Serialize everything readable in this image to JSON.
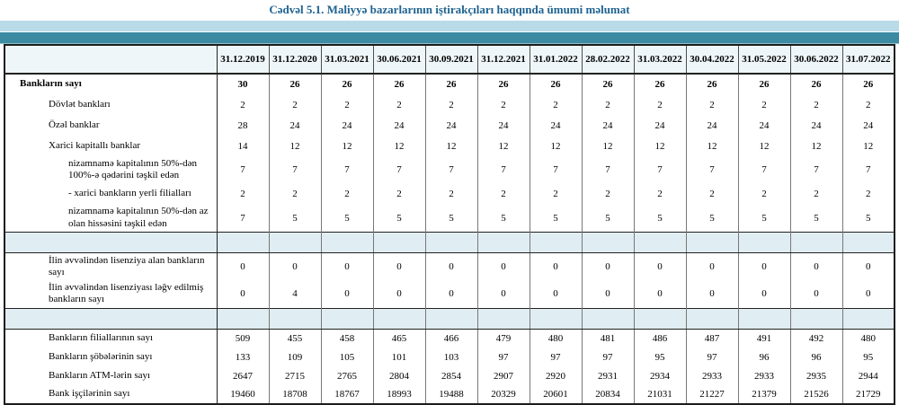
{
  "title": "Cədvəl 5.1. Maliyyə bazarlarının iştirakçıları haqqında ümumi məlumat",
  "colors": {
    "title_text": "#1f6391",
    "band_light": "#b9dbe7",
    "band_teal": "#3c8ba2",
    "header_bg": "#eff6f9",
    "separator_bg": "#e0edf2"
  },
  "table": {
    "date_columns": [
      "31.12.2019",
      "31.12.2020",
      "31.03.2021",
      "30.06.2021",
      "30.09.2021",
      "31.12.2021",
      "31.01.2022",
      "28.02.2022",
      "31.03.2022",
      "30.04.2022",
      "31.05.2022",
      "30.06.2022",
      "31.07.2022"
    ],
    "rows": [
      {
        "label": "Bankların sayı",
        "indent": 0,
        "bold": true,
        "values": [
          "30",
          "26",
          "26",
          "26",
          "26",
          "26",
          "26",
          "26",
          "26",
          "26",
          "26",
          "26",
          "26"
        ]
      },
      {
        "label": "Dövlət bankları",
        "indent": 1,
        "values": [
          "2",
          "2",
          "2",
          "2",
          "2",
          "2",
          "2",
          "2",
          "2",
          "2",
          "2",
          "2",
          "2"
        ]
      },
      {
        "label": "Özəl banklar",
        "indent": 1,
        "values": [
          "28",
          "24",
          "24",
          "24",
          "24",
          "24",
          "24",
          "24",
          "24",
          "24",
          "24",
          "24",
          "24"
        ]
      },
      {
        "label": "Xarici kapitallı banklar",
        "indent": 1,
        "values": [
          "14",
          "12",
          "12",
          "12",
          "12",
          "12",
          "12",
          "12",
          "12",
          "12",
          "12",
          "12",
          "12"
        ]
      },
      {
        "label": "nizamnamə kapitalının 50%-dən 100%-ə qədərini təşkil edən",
        "indent": 2,
        "values": [
          "7",
          "7",
          "7",
          "7",
          "7",
          "7",
          "7",
          "7",
          "7",
          "7",
          "7",
          "7",
          "7"
        ]
      },
      {
        "label": "-  xarici bankların yerli filialları",
        "indent": 2,
        "values": [
          "2",
          "2",
          "2",
          "2",
          "2",
          "2",
          "2",
          "2",
          "2",
          "2",
          "2",
          "2",
          "2"
        ]
      },
      {
        "label": "nizamnamə kapitalının 50%-dən az olan hissəsini  təşkil edən",
        "indent": 2,
        "values": [
          "7",
          "5",
          "5",
          "5",
          "5",
          "5",
          "5",
          "5",
          "5",
          "5",
          "5",
          "5",
          "5"
        ]
      },
      {
        "separator": true
      },
      {
        "label": "İlin əvvəlindən lisenziya alan bankların sayı",
        "indent": 1,
        "values": [
          "0",
          "0",
          "0",
          "0",
          "0",
          "0",
          "0",
          "0",
          "0",
          "0",
          "0",
          "0",
          "0"
        ]
      },
      {
        "label": "İlin əvvəlindən lisenziyası ləğv edilmiş bankların sayı",
        "indent": 1,
        "values": [
          "0",
          "4",
          "0",
          "0",
          "0",
          "0",
          "0",
          "0",
          "0",
          "0",
          "0",
          "0",
          "0"
        ]
      },
      {
        "separator": true
      },
      {
        "label": "Bankların filiallarının sayı",
        "indent": 1,
        "compact": true,
        "values": [
          "509",
          "455",
          "458",
          "465",
          "466",
          "479",
          "480",
          "481",
          "486",
          "487",
          "491",
          "492",
          "480"
        ]
      },
      {
        "label": "Bankların şöbələrinin sayı",
        "indent": 1,
        "compact": true,
        "values": [
          "133",
          "109",
          "105",
          "101",
          "103",
          "97",
          "97",
          "97",
          "95",
          "97",
          "96",
          "96",
          "95"
        ]
      },
      {
        "label": "Bankların ATM-lərin sayı",
        "indent": 1,
        "compact": true,
        "values": [
          "2647",
          "2715",
          "2765",
          "2804",
          "2854",
          "2907",
          "2920",
          "2931",
          "2934",
          "2933",
          "2933",
          "2935",
          "2944"
        ]
      },
      {
        "label": "Bank işçilərinin sayı",
        "indent": 1,
        "compact": true,
        "values": [
          "19460",
          "18708",
          "18767",
          "18993",
          "19488",
          "20329",
          "20601",
          "20834",
          "21031",
          "21227",
          "21379",
          "21526",
          "21729"
        ]
      }
    ]
  }
}
